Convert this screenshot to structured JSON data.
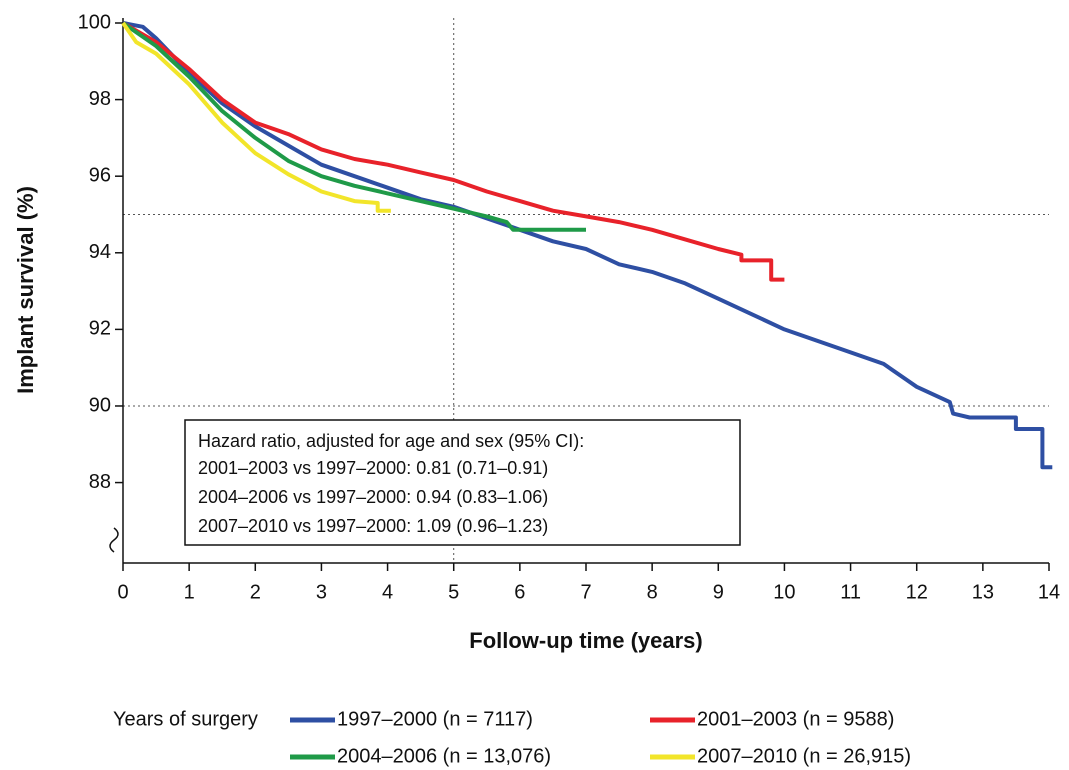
{
  "chart_data": {
    "type": "line",
    "x_label": "Follow-up time (years)",
    "y_label": "Implant survival (%)",
    "xlim": [
      0,
      14
    ],
    "ylim": [
      85.9,
      100
    ],
    "xticks": [
      0,
      1,
      2,
      3,
      4,
      5,
      6,
      7,
      8,
      9,
      10,
      11,
      12,
      13,
      14
    ],
    "yticks": [
      88,
      90,
      92,
      94,
      96,
      98,
      100
    ],
    "reference_x": [
      5
    ],
    "reference_y": [
      95,
      90
    ],
    "annotation": [
      "Hazard ratio, adjusted for age and sex (95% CI):",
      "2001–2003 vs 1997–2000: 0.81 (0.71–0.91)",
      "2004–2006 vs 1997–2000: 0.94 (0.83–1.06)",
      "2007–2010 vs 1997–2000: 1.09 (0.96–1.23)"
    ],
    "legend_title": "Years of surgery",
    "series": [
      {
        "name": "1997–2000 (n = 7117)",
        "color": "#2e4fa3",
        "x": [
          0,
          0.3,
          0.5,
          1,
          1.5,
          2,
          2.5,
          3,
          3.5,
          4,
          4.5,
          5,
          5.5,
          6,
          6.5,
          7,
          7.5,
          8,
          8.5,
          9,
          9.5,
          10,
          10.5,
          11,
          11.5,
          12,
          12.5,
          12.55,
          12.8,
          13.5,
          13.5,
          13.9,
          13.9,
          14.05
        ],
        "values": [
          100,
          99.9,
          99.6,
          98.7,
          97.9,
          97.3,
          96.8,
          96.3,
          96.0,
          95.7,
          95.4,
          95.2,
          94.9,
          94.6,
          94.3,
          94.1,
          93.7,
          93.5,
          93.2,
          92.8,
          92.4,
          92.0,
          91.7,
          91.4,
          91.1,
          90.5,
          90.1,
          89.8,
          89.7,
          89.7,
          89.4,
          89.4,
          88.4,
          88.4
        ]
      },
      {
        "name": "2001–2003 (n = 9588)",
        "color": "#e8222a",
        "x": [
          0,
          0.5,
          1,
          1.5,
          2,
          2.5,
          3,
          3.5,
          4,
          4.5,
          5,
          5.5,
          6,
          6.5,
          7,
          7.5,
          8,
          8.5,
          9,
          9.35,
          9.35,
          9.8,
          9.8,
          10
        ],
        "values": [
          100,
          99.5,
          98.8,
          98.0,
          97.4,
          97.1,
          96.7,
          96.45,
          96.3,
          96.1,
          95.9,
          95.6,
          95.35,
          95.1,
          94.95,
          94.8,
          94.6,
          94.35,
          94.1,
          93.95,
          93.8,
          93.8,
          93.3,
          93.3
        ]
      },
      {
        "name": "2004–2006 (n = 13,076)",
        "color": "#1f9a48",
        "x": [
          0,
          0.5,
          1,
          1.5,
          2,
          2.5,
          3,
          3.5,
          4,
          4.5,
          5,
          5.5,
          5.8,
          5.9,
          7
        ],
        "values": [
          100,
          99.4,
          98.6,
          97.7,
          97.0,
          96.4,
          96.0,
          95.75,
          95.55,
          95.35,
          95.15,
          94.95,
          94.8,
          94.6,
          94.6
        ]
      },
      {
        "name": "2007–2010 (n = 26,915)",
        "color": "#f2e52a",
        "x": [
          0,
          0.2,
          0.5,
          1,
          1.5,
          2,
          2.5,
          3,
          3.5,
          3.85,
          3.85,
          4.05
        ],
        "values": [
          100,
          99.5,
          99.2,
          98.4,
          97.4,
          96.6,
          96.05,
          95.6,
          95.35,
          95.3,
          95.1,
          95.1
        ]
      }
    ]
  }
}
